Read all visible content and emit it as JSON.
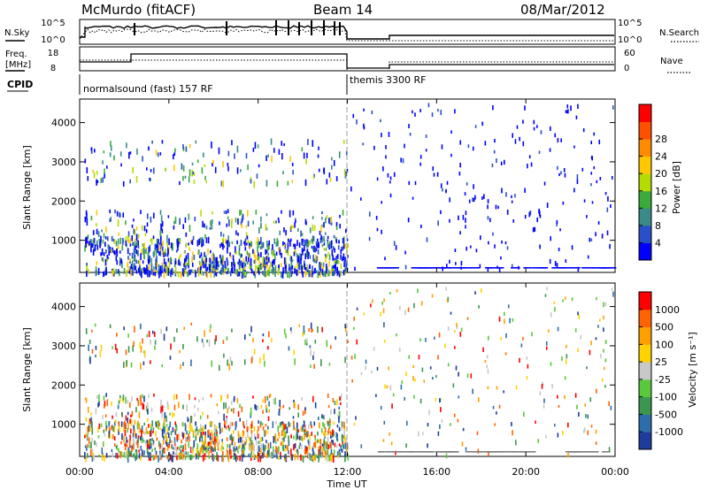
{
  "header": {
    "station": "McMurdo (fitACF)",
    "beam": "Beam 14",
    "date": "08/Mar/2012"
  },
  "noise_panel": {
    "left_label": "N.Sky",
    "right_label": "N.Search",
    "left_ticks": [
      "10^5",
      "10^0"
    ],
    "right_ticks": [
      "10^5",
      "10^0"
    ]
  },
  "freq_panel": {
    "left_label_1": "Freq.",
    "left_label_2": "[MHz]",
    "right_label": "Nave",
    "left_ticks": [
      "18",
      "8"
    ],
    "right_ticks": [
      "60",
      "0"
    ]
  },
  "cpid": {
    "label": "CPID",
    "segments": [
      {
        "text": "normalsound (fast) 157 RF",
        "start_hour": 0,
        "end_hour": 12
      },
      {
        "text": "themis 3300 RF",
        "start_hour": 12,
        "end_hour": 24
      }
    ]
  },
  "chart_data": [
    {
      "type": "scatter",
      "title": "",
      "ylabel": "Slant Range [km]",
      "xlabel": "",
      "xlim": [
        0,
        24
      ],
      "ylim": [
        180,
        4600
      ],
      "yticks": [
        "1000",
        "2000",
        "3000",
        "4000"
      ],
      "colorbar": {
        "label": "Power [dB]",
        "ticks": [
          "4",
          "8",
          "12",
          "16",
          "20",
          "24",
          "28"
        ],
        "colors": [
          "#0000ff",
          "#2850c8",
          "#3a8a8a",
          "#3caa3c",
          "#b4dc00",
          "#ffc800",
          "#ff8c00",
          "#ff5000",
          "#ff0000"
        ]
      }
    },
    {
      "type": "scatter",
      "title": "",
      "ylabel": "Slant Range [km]",
      "xlabel": "Time UT",
      "xlim": [
        0,
        24
      ],
      "ylim": [
        180,
        4600
      ],
      "yticks": [
        "1000",
        "2000",
        "3000",
        "4000"
      ],
      "xticks": [
        "00:00",
        "04:00",
        "08:00",
        "12:00",
        "16:00",
        "20:00",
        "00:00"
      ],
      "colorbar": {
        "label": "Velocity [m s⁻¹]",
        "ticks": [
          "1000",
          "500",
          "100",
          "25",
          "-25",
          "-100",
          "-500",
          "-1000"
        ],
        "colors": [
          "#1e3c9b",
          "#2d6eaa",
          "#3c9650",
          "#5ac83c",
          "#c8c8c8",
          "#ffd200",
          "#ffa000",
          "#ff6400",
          "#ff0000"
        ]
      }
    }
  ]
}
